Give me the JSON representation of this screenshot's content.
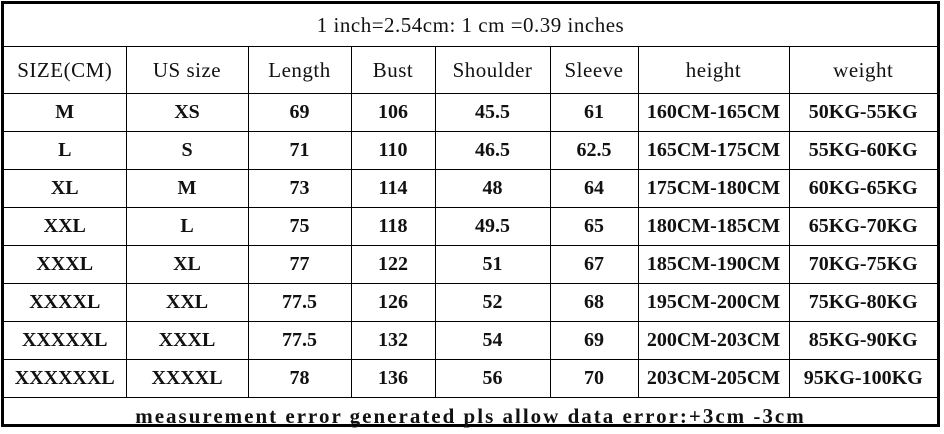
{
  "title": "1 inch=2.54cm: 1 cm =0.39 inches",
  "headers": [
    "SIZE(CM)",
    "US size",
    "Length",
    "Bust",
    "Shoulder",
    "Sleeve",
    "height",
    "weight"
  ],
  "rows": [
    [
      "M",
      "XS",
      "69",
      "106",
      "45.5",
      "61",
      "160CM-165CM",
      "50KG-55KG"
    ],
    [
      "L",
      "S",
      "71",
      "110",
      "46.5",
      "62.5",
      "165CM-175CM",
      "55KG-60KG"
    ],
    [
      "XL",
      "M",
      "73",
      "114",
      "48",
      "64",
      "175CM-180CM",
      "60KG-65KG"
    ],
    [
      "XXL",
      "L",
      "75",
      "118",
      "49.5",
      "65",
      "180CM-185CM",
      "65KG-70KG"
    ],
    [
      "XXXL",
      "XL",
      "77",
      "122",
      "51",
      "67",
      "185CM-190CM",
      "70KG-75KG"
    ],
    [
      "XXXXL",
      "XXL",
      "77.5",
      "126",
      "52",
      "68",
      "195CM-200CM",
      "75KG-80KG"
    ],
    [
      "XXXXXL",
      "XXXL",
      "77.5",
      "132",
      "54",
      "69",
      "200CM-203CM",
      "85KG-90KG"
    ],
    [
      "XXXXXXL",
      "XXXXL",
      "78",
      "136",
      "56",
      "70",
      "203CM-205CM",
      "95KG-100KG"
    ]
  ],
  "footer": "measurement error generated pls allow data error:+3cm -3cm"
}
